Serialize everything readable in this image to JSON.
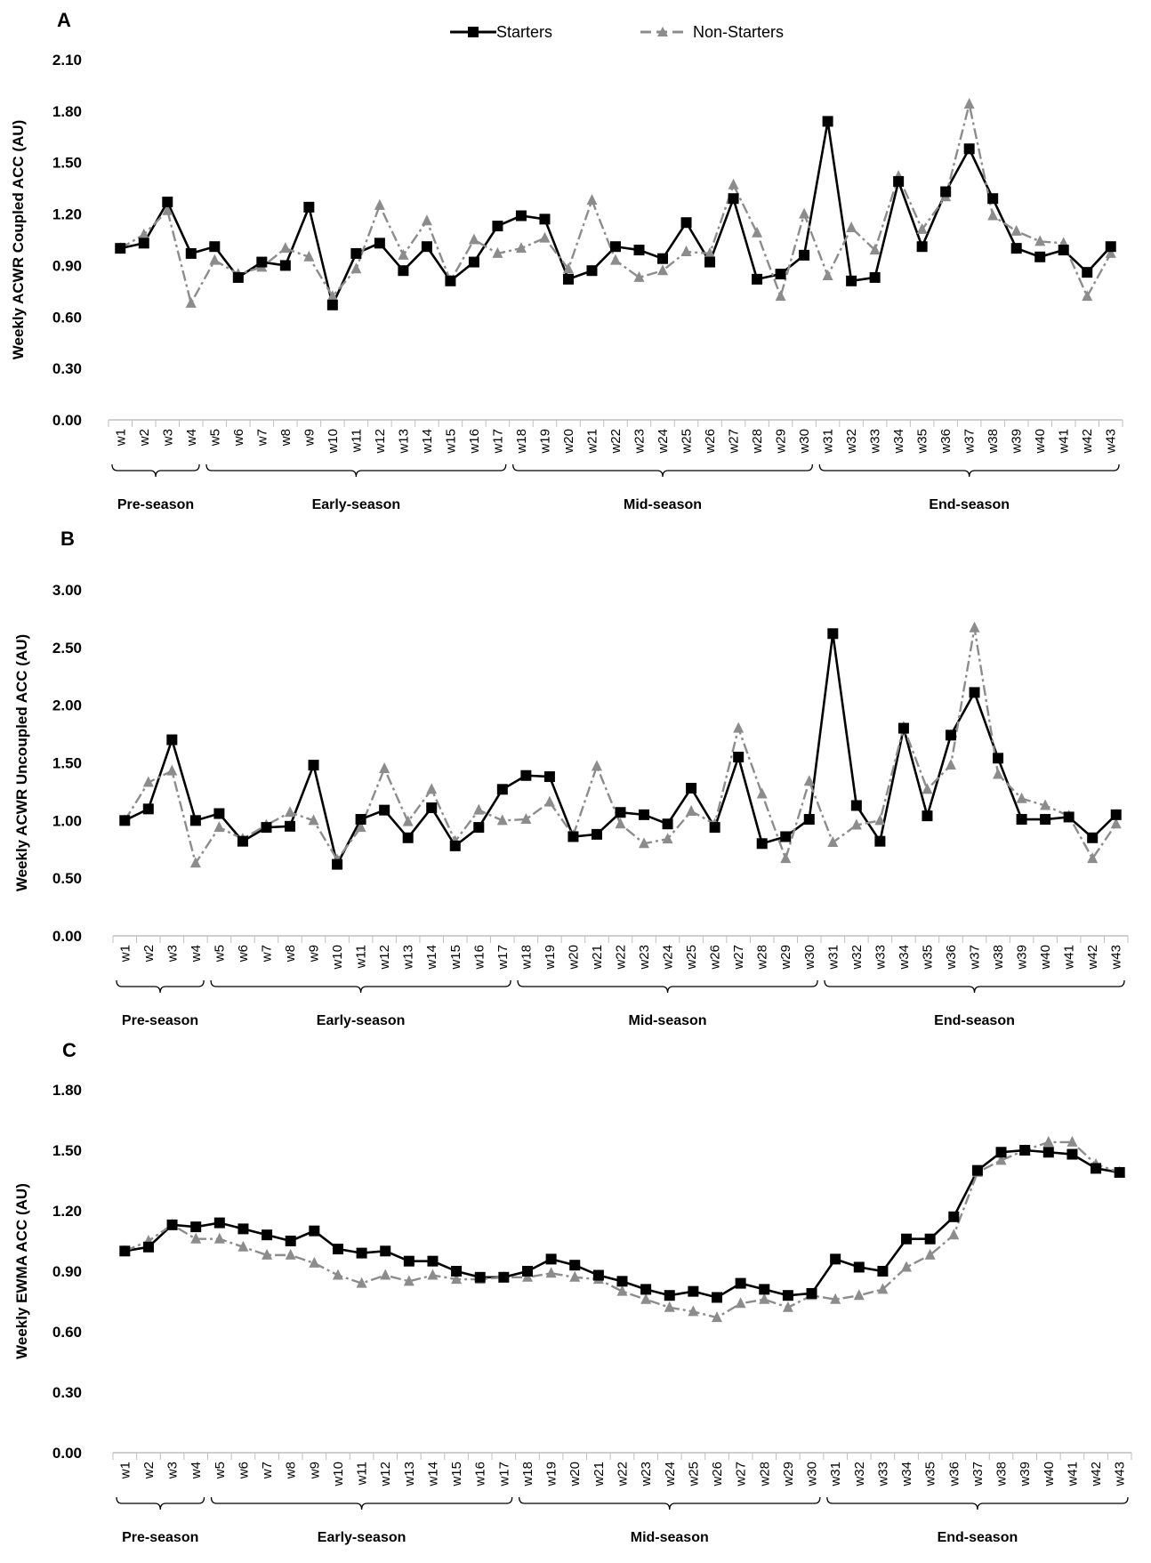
{
  "legend": {
    "starters": "Starters",
    "non_starters": "Non-Starters"
  },
  "colors": {
    "starters": "#000000",
    "non_starters": "#8c8c8c",
    "axis": "#bfbfbf"
  },
  "weeks": [
    "w1",
    "w2",
    "w3",
    "w4",
    "w5",
    "w6",
    "w7",
    "w8",
    "w9",
    "w10",
    "w11",
    "w12",
    "w13",
    "w14",
    "w15",
    "w16",
    "w17",
    "w18",
    "w19",
    "w20",
    "w21",
    "w22",
    "w23",
    "w24",
    "w25",
    "w26",
    "w27",
    "w28",
    "w29",
    "w30",
    "w31",
    "w32",
    "w33",
    "w34",
    "w35",
    "w36",
    "w37",
    "w38",
    "w39",
    "w40",
    "w41",
    "w42",
    "w43"
  ],
  "phases": [
    {
      "label": "Pre-season",
      "from": 1,
      "to": 4
    },
    {
      "label": "Early-season",
      "from": 5,
      "to": 17
    },
    {
      "label": "Mid-season",
      "from": 18,
      "to": 30
    },
    {
      "label": "End-season",
      "from": 31,
      "to": 43
    }
  ],
  "chart_data": [
    {
      "type": "line",
      "panel": "A",
      "ylabel": "Weekly ACWR Coupled ACC (AU)",
      "ylim": [
        0,
        2.1
      ],
      "yticks": [
        "0.00",
        "0.30",
        "0.60",
        "0.90",
        "1.20",
        "1.50",
        "1.80",
        "2.10"
      ],
      "series": [
        {
          "name": "Starters",
          "values": [
            1.0,
            1.03,
            1.27,
            0.97,
            1.01,
            0.83,
            0.92,
            0.9,
            1.24,
            0.67,
            0.97,
            1.03,
            0.87,
            1.01,
            0.81,
            0.92,
            1.13,
            1.19,
            1.17,
            0.82,
            0.87,
            1.01,
            0.99,
            0.94,
            1.15,
            0.92,
            1.29,
            0.82,
            0.85,
            0.96,
            1.74,
            0.81,
            0.83,
            1.39,
            1.01,
            1.33,
            1.58,
            1.29,
            1.0,
            0.95,
            0.99,
            0.86,
            1.01
          ]
        },
        {
          "name": "Non-Starters",
          "values": [
            1.0,
            1.08,
            1.22,
            0.68,
            0.93,
            0.85,
            0.89,
            1.0,
            0.95,
            0.72,
            0.88,
            1.25,
            0.96,
            1.16,
            0.81,
            1.05,
            0.97,
            1.0,
            1.06,
            0.88,
            1.28,
            0.93,
            0.83,
            0.87,
            0.98,
            0.97,
            1.37,
            1.09,
            0.72,
            1.2,
            0.84,
            1.12,
            0.99,
            1.42,
            1.11,
            1.3,
            1.84,
            1.19,
            1.1,
            1.04,
            1.03,
            0.72,
            0.97
          ]
        }
      ]
    },
    {
      "type": "line",
      "panel": "B",
      "ylabel": "Weekly ACWR Uncoupled ACC (AU)",
      "ylim": [
        0,
        3.0
      ],
      "yticks": [
        "0.00",
        "0.50",
        "1.00",
        "1.50",
        "2.00",
        "2.50",
        "3.00"
      ],
      "series": [
        {
          "name": "Starters",
          "values": [
            1.0,
            1.1,
            1.7,
            1.0,
            1.06,
            0.82,
            0.94,
            0.95,
            1.48,
            0.62,
            1.01,
            1.09,
            0.85,
            1.11,
            0.78,
            0.94,
            1.27,
            1.39,
            1.38,
            0.86,
            0.88,
            1.07,
            1.05,
            0.97,
            1.28,
            0.94,
            1.55,
            0.8,
            0.86,
            1.01,
            2.62,
            1.13,
            0.82,
            1.8,
            1.04,
            1.74,
            2.11,
            1.54,
            1.01,
            1.01,
            1.03,
            0.85,
            1.05
          ]
        },
        {
          "name": "Non-Starters",
          "values": [
            1.0,
            1.33,
            1.43,
            0.63,
            0.94,
            0.84,
            0.96,
            1.07,
            1.0,
            0.66,
            0.94,
            1.45,
            0.99,
            1.27,
            0.82,
            1.09,
            1.0,
            1.01,
            1.16,
            0.87,
            1.47,
            0.97,
            0.8,
            0.84,
            1.08,
            0.97,
            1.8,
            1.23,
            0.67,
            1.34,
            0.81,
            0.96,
            1.0,
            1.81,
            1.27,
            1.48,
            2.67,
            1.4,
            1.19,
            1.13,
            1.04,
            0.67,
            0.97
          ]
        }
      ]
    },
    {
      "type": "line",
      "panel": "C",
      "ylabel": "Weekly EWMA ACC (AU)",
      "ylim": [
        0,
        1.8
      ],
      "yticks": [
        "0.00",
        "0.30",
        "0.60",
        "0.90",
        "1.20",
        "1.50",
        "1.80"
      ],
      "series": [
        {
          "name": "Starters",
          "values": [
            1.0,
            1.02,
            1.13,
            1.12,
            1.14,
            1.11,
            1.08,
            1.05,
            1.1,
            1.01,
            0.99,
            1.0,
            0.95,
            0.95,
            0.9,
            0.87,
            0.87,
            0.9,
            0.96,
            0.93,
            0.88,
            0.85,
            0.81,
            0.78,
            0.8,
            0.77,
            0.84,
            0.81,
            0.78,
            0.79,
            0.96,
            0.92,
            0.9,
            1.06,
            1.06,
            1.17,
            1.4,
            1.49,
            1.5,
            1.49,
            1.48,
            1.41,
            1.39
          ]
        },
        {
          "name": "Non-Starters",
          "values": [
            1.0,
            1.05,
            1.13,
            1.06,
            1.06,
            1.02,
            0.98,
            0.98,
            0.94,
            0.88,
            0.84,
            0.88,
            0.85,
            0.88,
            0.86,
            0.86,
            0.87,
            0.87,
            0.89,
            0.87,
            0.86,
            0.8,
            0.76,
            0.72,
            0.7,
            0.67,
            0.74,
            0.76,
            0.72,
            0.78,
            0.76,
            0.78,
            0.81,
            0.92,
            0.98,
            1.08,
            1.39,
            1.45,
            1.5,
            1.54,
            1.54,
            1.43,
            1.39
          ]
        }
      ]
    }
  ]
}
